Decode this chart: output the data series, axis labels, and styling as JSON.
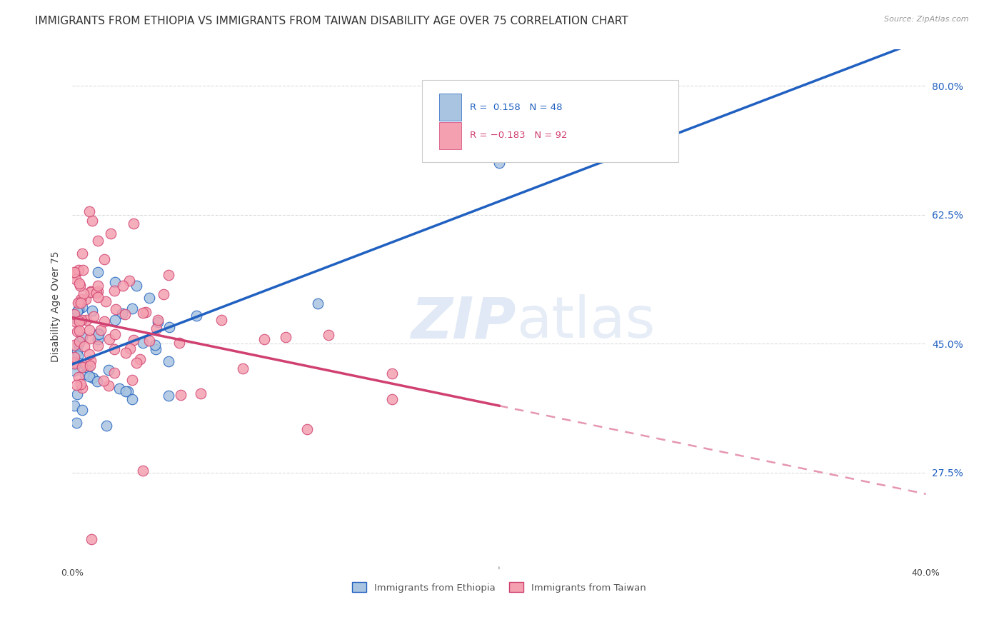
{
  "title": "IMMIGRANTS FROM ETHIOPIA VS IMMIGRANTS FROM TAIWAN DISABILITY AGE OVER 75 CORRELATION CHART",
  "source": "Source: ZipAtlas.com",
  "ylabel": "Disability Age Over 75",
  "ylabel_labels": [
    "80.0%",
    "62.5%",
    "45.0%",
    "27.5%"
  ],
  "ylabel_values": [
    0.8,
    0.625,
    0.45,
    0.275
  ],
  "legend_r_ethiopia": "R =  0.158",
  "legend_n_ethiopia": "N = 48",
  "legend_r_taiwan": "R = -0.183",
  "legend_n_taiwan": "N = 92",
  "legend_label_ethiopia": "Immigrants from Ethiopia",
  "legend_label_taiwan": "Immigrants from Taiwan",
  "color_ethiopia_fill": "#a8c4e0",
  "color_ethiopia_edge": "#2060c0",
  "color_taiwan_fill": "#f4a0b0",
  "color_taiwan_edge": "#d04070",
  "color_line_ethiopia": "#2060c0",
  "color_line_taiwan": "#d04070",
  "background_color": "#ffffff",
  "watermark_zip_color": "#c8d8ee",
  "watermark_atlas_color": "#c8d8ee",
  "xlim": [
    0.0,
    0.4
  ],
  "ylim": [
    0.15,
    0.85
  ],
  "title_fontsize": 11,
  "tick_fontsize": 9,
  "grid_color": "#cccccc",
  "grid_alpha": 0.7
}
